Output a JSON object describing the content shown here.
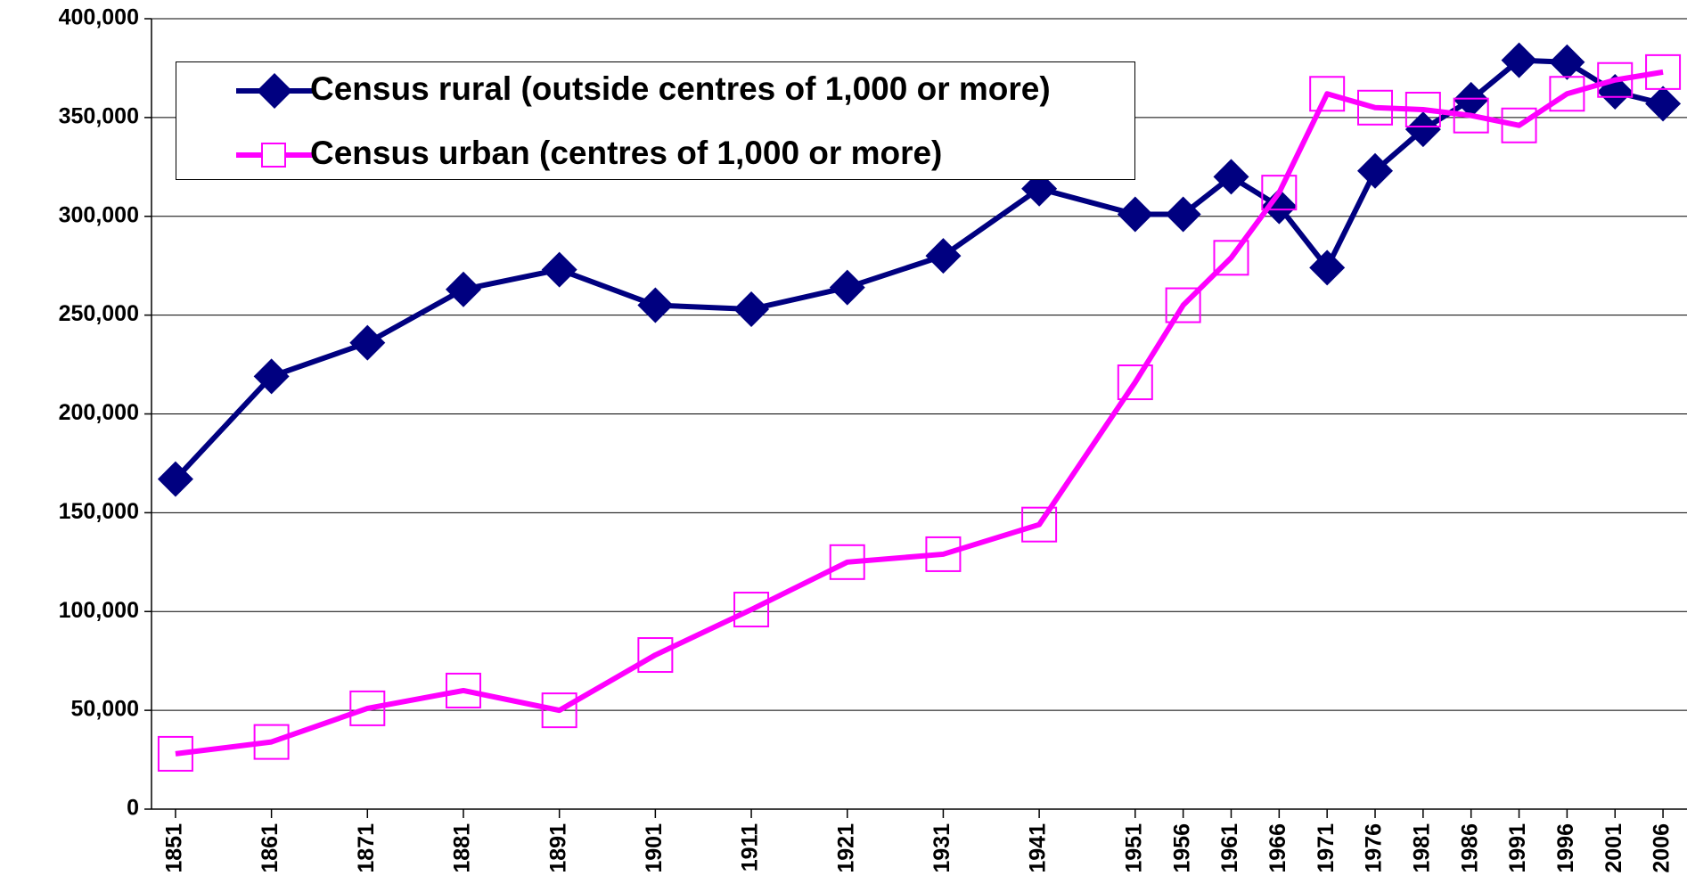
{
  "chart_data": {
    "type": "line",
    "x": [
      1851,
      1861,
      1871,
      1881,
      1891,
      1901,
      1911,
      1921,
      1931,
      1941,
      1951,
      1956,
      1961,
      1966,
      1971,
      1976,
      1981,
      1986,
      1991,
      1996,
      2001,
      2006
    ],
    "xlim": [
      1848.5,
      2008.5
    ],
    "xticks": [
      1851,
      1861,
      1871,
      1881,
      1891,
      1901,
      1911,
      1921,
      1931,
      1941,
      1951,
      1956,
      1961,
      1966,
      1971,
      1976,
      1981,
      1986,
      1991,
      1996,
      2001,
      2006
    ],
    "ylim": [
      0,
      400000
    ],
    "yticks": [
      0,
      {
        "value": 50000,
        "label": "50,000"
      },
      {
        "value": 100000,
        "label": "100,000"
      },
      {
        "value": 150000,
        "label": "150,000"
      },
      {
        "value": 200000,
        "label": "200,000"
      },
      {
        "value": 250000,
        "label": "250,000"
      },
      {
        "value": 300000,
        "label": "300,000"
      },
      {
        "value": 350000,
        "label": "350,000"
      },
      {
        "value": 400000,
        "label": "400,000"
      }
    ],
    "grid": true,
    "legend": "top-left",
    "series": [
      {
        "name": "Census rural (outside centres of 1,000 or more)",
        "color": "#000080",
        "marker": "diamond",
        "values": [
          167000,
          219000,
          236000,
          263000,
          273000,
          255000,
          253000,
          264000,
          280000,
          314000,
          301000,
          301000,
          320000,
          305000,
          274000,
          323000,
          344000,
          359000,
          379000,
          378000,
          363000,
          357000
        ]
      },
      {
        "name": "Census urban (centres of 1,000 or more)",
        "color": "#ff00ff",
        "marker": "square",
        "values": [
          28000,
          34000,
          51000,
          60000,
          50000,
          78000,
          101000,
          125000,
          129000,
          144000,
          216000,
          255000,
          279000,
          312000,
          362000,
          355000,
          354000,
          351000,
          346000,
          362000,
          369000,
          373000
        ]
      }
    ]
  }
}
